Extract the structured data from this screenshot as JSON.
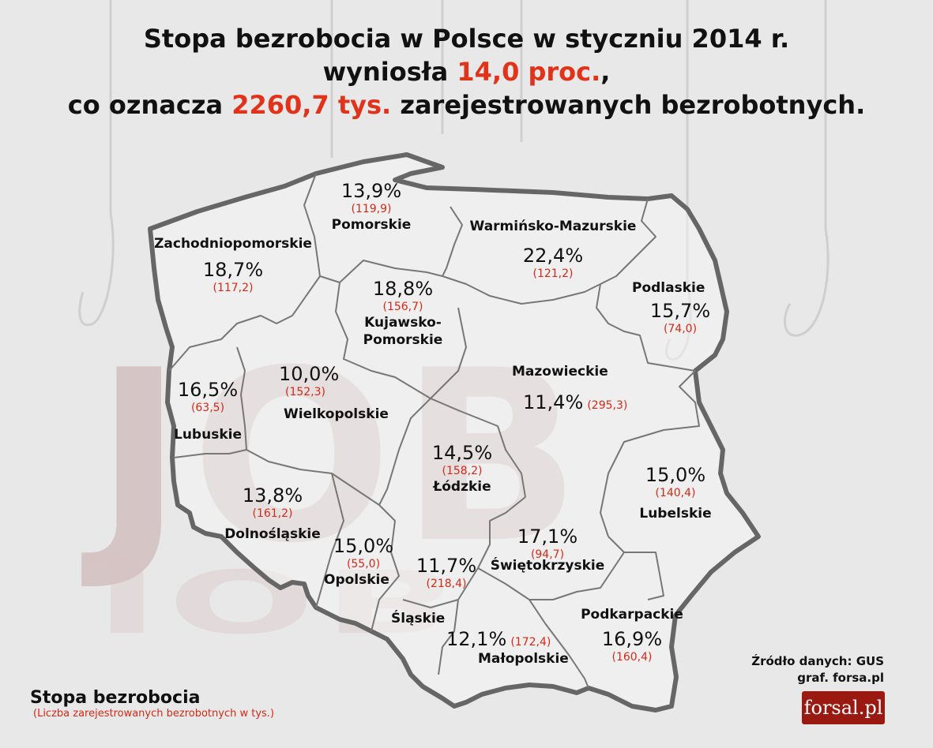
{
  "title": {
    "line1": "Stopa bezrobocia w Polsce w styczniu 2014 r.",
    "line2_pre": "wyniosła",
    "line2_hl": "14,0 proc.",
    "line2_post": ",",
    "line3_pre": "co oznacza",
    "line3_hl": "2260,7 tys.",
    "line3_post": "zarejestrowanych bezrobotnych."
  },
  "background_text": "JOB",
  "regions": [
    {
      "name": "Pomorskie",
      "rate": "13,9%",
      "count": "(119,9)"
    },
    {
      "name": "Zachodniopomorskie",
      "rate": "18,7%",
      "count": "(117,2)"
    },
    {
      "name": "Warmińsko-Mazurskie",
      "rate": "22,4%",
      "count": "(121,2)"
    },
    {
      "name": "Podlaskie",
      "rate": "15,7%",
      "count": "(74,0)"
    },
    {
      "name": "Kujawsko-Pomorskie",
      "name_line1": "Kujawsko-",
      "name_line2": "Pomorskie",
      "rate": "18,8%",
      "count": "(156,7)"
    },
    {
      "name": "Lubuskie",
      "rate": "16,5%",
      "count": "(63,5)"
    },
    {
      "name": "Wielkopolskie",
      "rate": "10,0%",
      "count": "(152,3)"
    },
    {
      "name": "Mazowieckie",
      "rate": "11,4%",
      "count": "(295,3)"
    },
    {
      "name": "Łódzkie",
      "rate": "14,5%",
      "count": "(158,2)"
    },
    {
      "name": "Lubelskie",
      "rate": "15,0%",
      "count": "(140,4)"
    },
    {
      "name": "Dolnośląskie",
      "rate": "13,8%",
      "count": "(161,2)"
    },
    {
      "name": "Opolskie",
      "rate": "15,0%",
      "count": "(55,0)"
    },
    {
      "name": "Śląskie",
      "rate": "11,7%",
      "count": "(218,4)"
    },
    {
      "name": "Świętokrzyskie",
      "rate": "17,1%",
      "count": "(94,7)"
    },
    {
      "name": "Małopolskie",
      "rate": "12,1%",
      "count": "(172,4)"
    },
    {
      "name": "Podkarpackie",
      "rate": "16,9%",
      "count": "(160,4)"
    }
  ],
  "legend": {
    "title": "Stopa bezrobocia",
    "subtitle": "(Liczba zarejestrowanych bezrobotnych w tys.)"
  },
  "source": {
    "line1": "Źródło danych: GUS",
    "line2": "graf. forsa.pl"
  },
  "logo": "forsal.pl",
  "colors": {
    "highlight": "#e0331a",
    "count_red": "#d42a16",
    "border": "#666666",
    "map_fill": "#f4f4f4",
    "logo_bg": "#9a1a12"
  }
}
